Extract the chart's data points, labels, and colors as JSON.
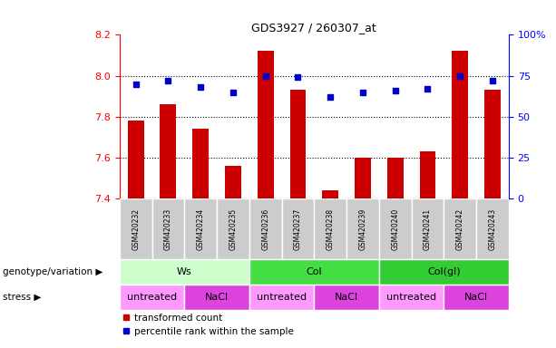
{
  "title": "GDS3927 / 260307_at",
  "samples": [
    "GSM420232",
    "GSM420233",
    "GSM420234",
    "GSM420235",
    "GSM420236",
    "GSM420237",
    "GSM420238",
    "GSM420239",
    "GSM420240",
    "GSM420241",
    "GSM420242",
    "GSM420243"
  ],
  "bar_values": [
    7.78,
    7.86,
    7.74,
    7.56,
    8.12,
    7.93,
    7.44,
    7.6,
    7.6,
    7.63,
    8.12,
    7.93
  ],
  "bar_base": 7.4,
  "dot_values": [
    70,
    72,
    68,
    65,
    75,
    74,
    62,
    65,
    66,
    67,
    75,
    72
  ],
  "ylim_left": [
    7.4,
    8.2
  ],
  "ylim_right": [
    0,
    100
  ],
  "yticks_left": [
    7.4,
    7.6,
    7.8,
    8.0,
    8.2
  ],
  "yticks_right": [
    0,
    25,
    50,
    75,
    100
  ],
  "bar_color": "#cc0000",
  "dot_color": "#0000cc",
  "xticklabel_bg": "#cccccc",
  "genotype_groups": [
    {
      "label": "Ws",
      "start": 0,
      "end": 3,
      "color": "#ccffcc"
    },
    {
      "label": "Col",
      "start": 4,
      "end": 7,
      "color": "#44dd44"
    },
    {
      "label": "Col(gl)",
      "start": 8,
      "end": 11,
      "color": "#33cc33"
    }
  ],
  "stress_groups": [
    {
      "label": "untreated",
      "start": 0,
      "end": 1,
      "color": "#ff99ff"
    },
    {
      "label": "NaCl",
      "start": 2,
      "end": 3,
      "color": "#dd44dd"
    },
    {
      "label": "untreated",
      "start": 4,
      "end": 5,
      "color": "#ff99ff"
    },
    {
      "label": "NaCl",
      "start": 6,
      "end": 7,
      "color": "#dd44dd"
    },
    {
      "label": "untreated",
      "start": 8,
      "end": 9,
      "color": "#ff99ff"
    },
    {
      "label": "NaCl",
      "start": 10,
      "end": 11,
      "color": "#dd44dd"
    }
  ],
  "legend_bar_label": "transformed count",
  "legend_dot_label": "percentile rank within the sample",
  "genotype_label": "genotype/variation",
  "stress_label": "stress"
}
